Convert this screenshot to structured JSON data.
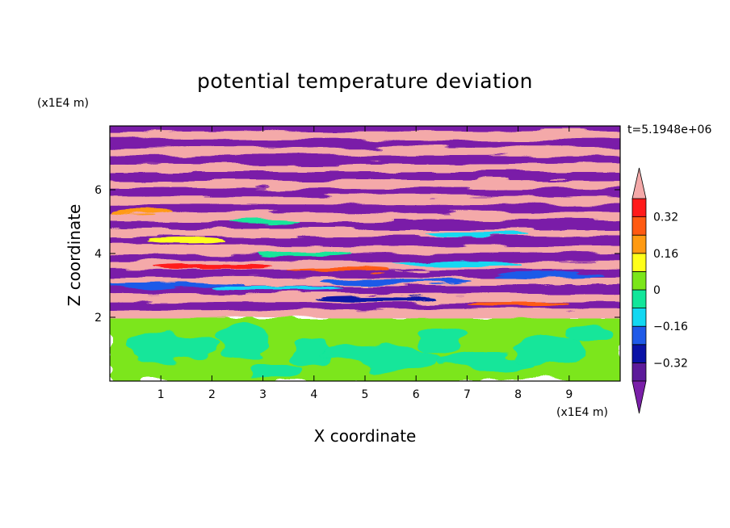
{
  "chart_data": {
    "type": "heatmap",
    "title": "potential temperature deviation",
    "xlabel": "X coordinate",
    "ylabel": "Z coordinate",
    "x_unit": "(x1E4 m)",
    "y_unit": "(x1E4 m)",
    "time_label": "t=5.1948e+06",
    "x_ticks": [
      1,
      2,
      3,
      4,
      5,
      6,
      7,
      8,
      9
    ],
    "y_ticks": [
      2,
      4,
      6
    ],
    "xlim": [
      0,
      10
    ],
    "ylim": [
      0,
      8
    ],
    "colorbar": {
      "levels": [
        -0.48,
        -0.4,
        -0.32,
        -0.24,
        -0.16,
        -0.08,
        0,
        0.08,
        0.16,
        0.24,
        0.32,
        0.4,
        0.48
      ],
      "colors": [
        "#7a1fa8",
        "#5c1a9a",
        "#0a12a6",
        "#1f5ae8",
        "#12d8f2",
        "#12e69a",
        "#7be61a",
        "#ffff1a",
        "#ff9a12",
        "#ff5a12",
        "#ff1a1a",
        "#f4a9a9"
      ],
      "labeled_ticks": [
        0.32,
        0.16,
        0,
        -0.16,
        -0.32
      ],
      "tick_labels": [
        "0.32",
        "0.16",
        "0",
        "−0.16",
        "−0.32"
      ],
      "extend": "both"
    },
    "field_description_note": ""
  }
}
